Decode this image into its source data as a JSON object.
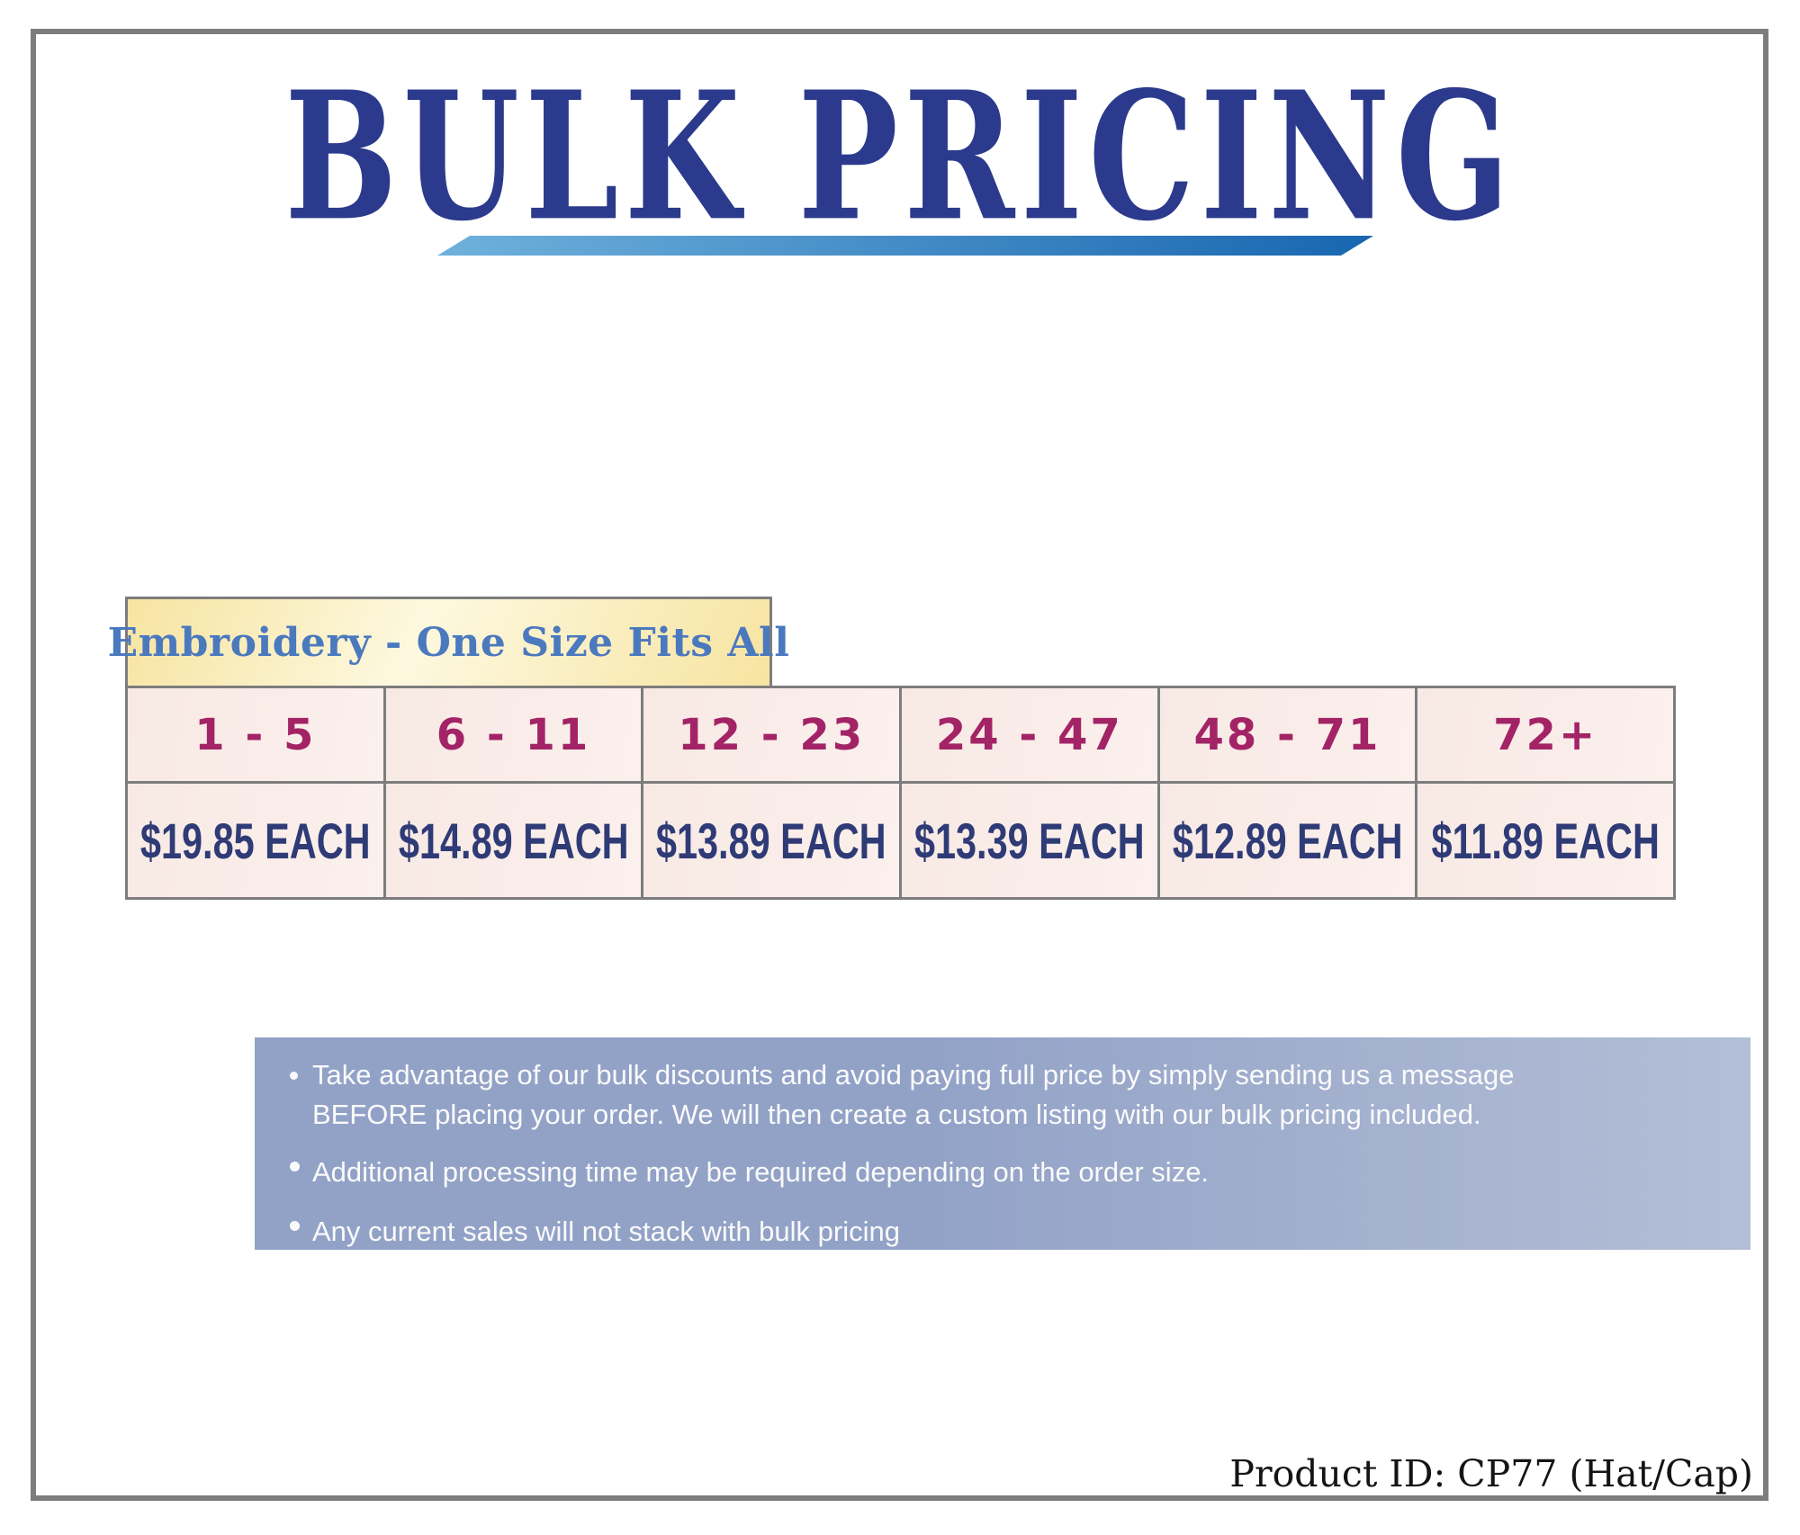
{
  "header": {
    "title": "BULK PRICING"
  },
  "category": {
    "label": "Embroidery - One Size Fits All"
  },
  "pricing_table": {
    "tiers": [
      {
        "quantity": "1 - 5",
        "price": "$19.85 EACH"
      },
      {
        "quantity": "6 - 11",
        "price": "$14.89 EACH"
      },
      {
        "quantity": "12 - 23",
        "price": "$13.89 EACH"
      },
      {
        "quantity": "24 - 47",
        "price": "$13.39 EACH"
      },
      {
        "quantity": "48 - 71",
        "price": "$12.89 EACH"
      },
      {
        "quantity": "72+",
        "price": "$11.89 EACH"
      }
    ]
  },
  "notes": {
    "bullets": [
      "Take advantage of our bulk discounts and avoid paying full price by simply sending us a message BEFORE placing your order. We will then create a custom listing with our bulk pricing included.",
      "Additional processing time may be required depending on the order size.",
      "Any current sales will not stack with bulk pricing"
    ]
  },
  "footer": {
    "product_id": "Product ID: CP77 (Hat/Cap)"
  },
  "colors": {
    "title_navy": "#2b3a8c",
    "underline_gradient_start": "#6fb1dc",
    "underline_gradient_end": "#1866b0",
    "category_text_blue": "#4b79be",
    "category_bg_yellow": "#f7e4a1",
    "tier_magenta": "#a32466",
    "price_navy": "#2f3b76",
    "cell_pink": "#f8e9e4",
    "notes_bg_blue": "#92a2c7",
    "notes_text": "#fafafa",
    "frame_gray": "#7d7d7d"
  }
}
